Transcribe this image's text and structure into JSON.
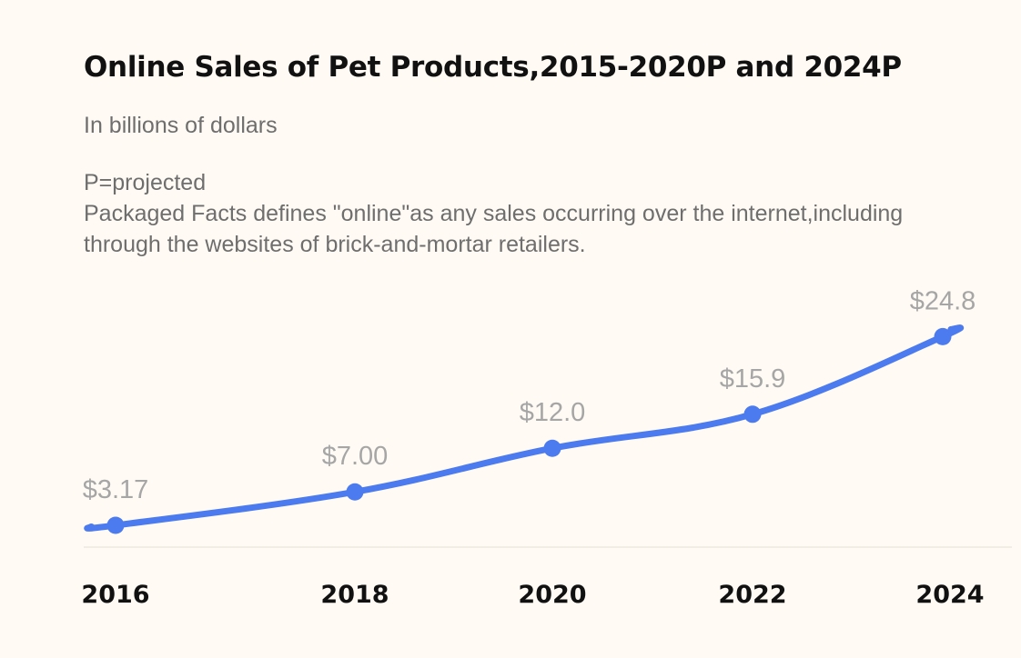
{
  "chart_data": {
    "type": "line",
    "title": "Online Sales of Pet Products,2015-2020P and 2024P",
    "subtitle": "In billions of dollars",
    "notes": [
      "P=projected",
      "Packaged Facts defines \"online\"as any sales occurring over the internet,including",
      "through the websites of brick-and-mortar retailers."
    ],
    "x": [
      2016,
      2018,
      2020,
      2022,
      2024
    ],
    "tick_labels": [
      "2016",
      "2018",
      "2020",
      "2022",
      "2024"
    ],
    "series": [
      {
        "values": [
          3.17,
          7.0,
          12.0,
          15.9,
          24.8
        ],
        "data_labels": [
          "$3.17",
          "$7.00",
          "$12.0",
          "$15.9",
          "$24.8"
        ]
      }
    ],
    "line_color": "#4b7bef",
    "label_color": "#a6a6a6",
    "background": "#fffaf3",
    "grid": false
  }
}
